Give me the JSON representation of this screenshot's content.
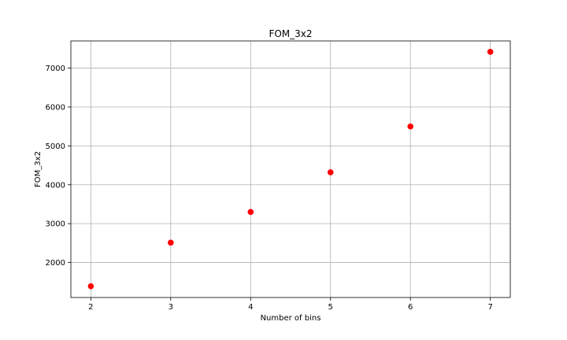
{
  "chart_data": {
    "type": "scatter",
    "title": "FOM_3x2",
    "xlabel": "Number of bins",
    "ylabel": "FOM_3x2",
    "x": [
      2,
      3,
      4,
      5,
      6,
      7
    ],
    "y": [
      1390,
      2510,
      3300,
      4320,
      5500,
      7420
    ],
    "xlim": [
      1.75,
      7.25
    ],
    "ylim": [
      1100,
      7700
    ],
    "xticks": [
      2,
      3,
      4,
      5,
      6,
      7
    ],
    "yticks": [
      2000,
      3000,
      4000,
      5000,
      6000,
      7000
    ],
    "grid": true,
    "marker_color": "#ff0000"
  }
}
